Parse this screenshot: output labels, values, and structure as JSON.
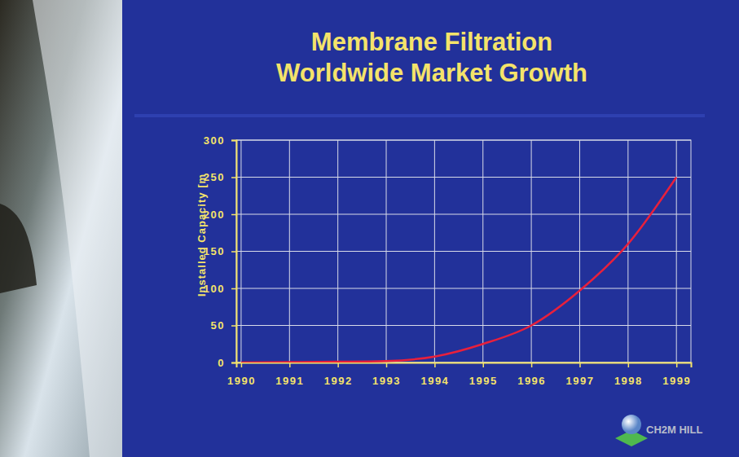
{
  "chart_data": {
    "type": "line",
    "title": "Membrane Filtration Worldwide Market Growth",
    "y_label": "Installed Capacity [m",
    "annotations": [
      "CH2M HILL"
    ],
    "x": [
      1990,
      1991,
      1992,
      1993,
      1994,
      1995,
      1996,
      1997,
      1998,
      1999
    ],
    "values": [
      0,
      0.5,
      1,
      2,
      8,
      25,
      50,
      97,
      160,
      250
    ],
    "color": "#e8203c",
    "xlim": [
      1989.9,
      1999.3
    ],
    "xticks": [
      1990,
      1991,
      1992,
      1993,
      1994,
      1995,
      1996,
      1997,
      1998,
      1999
    ],
    "ylim": [
      0,
      300
    ],
    "yticks": [
      0,
      50,
      100,
      150,
      200,
      250,
      300
    ],
    "grid": true
  }
}
